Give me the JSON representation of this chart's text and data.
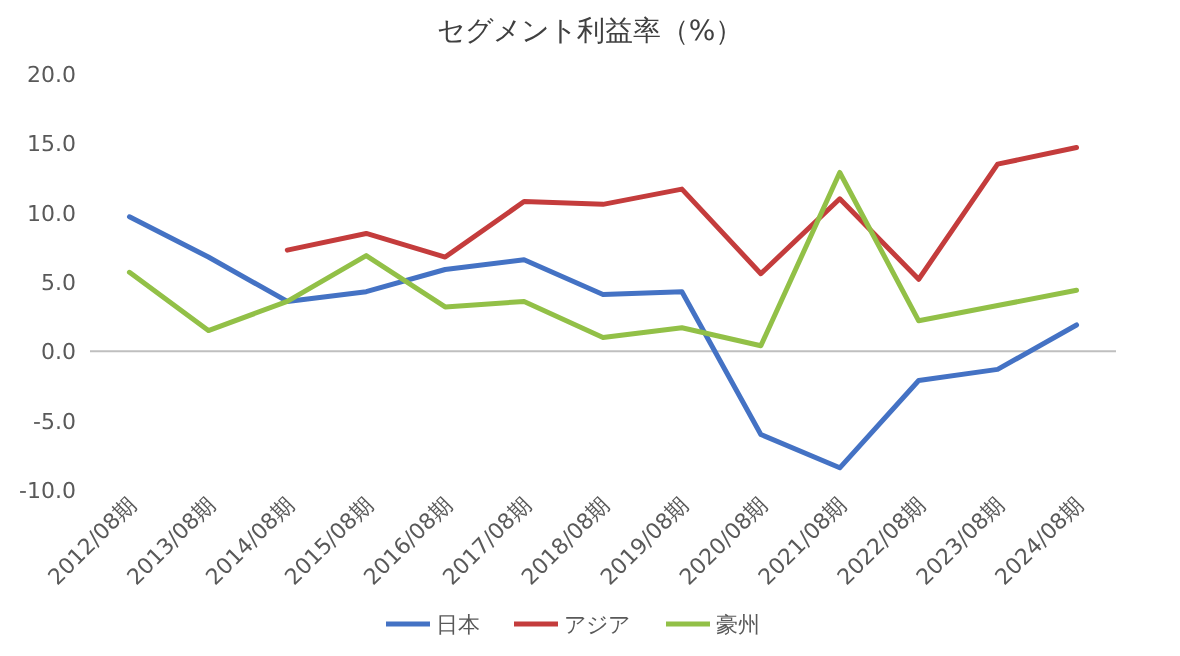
{
  "chart_data": {
    "type": "line",
    "title": "セグメント利益率（%）",
    "categories": [
      "2012/08期",
      "2013/08期",
      "2014/08期",
      "2015/08期",
      "2016/08期",
      "2017/08期",
      "2018/08期",
      "2019/08期",
      "2020/08期",
      "2021/08期",
      "2022/08期",
      "2023/08期",
      "2024/08期"
    ],
    "series": [
      {
        "name": "日本",
        "color": "#4472c4",
        "values": [
          9.7,
          6.8,
          3.6,
          4.3,
          5.9,
          6.6,
          4.1,
          4.3,
          -6.0,
          -8.4,
          -2.1,
          -1.3,
          1.9
        ]
      },
      {
        "name": "アジア",
        "color": "#c43c3c",
        "values": [
          null,
          null,
          7.3,
          8.5,
          6.8,
          10.8,
          10.6,
          11.7,
          5.6,
          11.0,
          5.2,
          13.5,
          14.7
        ]
      },
      {
        "name": "豪州",
        "color": "#92c047",
        "values": [
          5.7,
          1.5,
          3.6,
          6.9,
          3.2,
          3.6,
          1.0,
          1.7,
          0.4,
          12.9,
          2.2,
          3.3,
          4.4
        ]
      }
    ],
    "ylim": [
      -10,
      20
    ],
    "yticks": [
      {
        "value": -10,
        "label": "-10.0"
      },
      {
        "value": -5,
        "label": "-5.0"
      },
      {
        "value": 0,
        "label": "0.0"
      },
      {
        "value": 5,
        "label": "5.0"
      },
      {
        "value": 10,
        "label": "10.0"
      },
      {
        "value": 15,
        "label": "15.0"
      },
      {
        "value": 20,
        "label": "20.0"
      }
    ],
    "legend": "bottom",
    "marker": "none",
    "line_style": "solid"
  }
}
